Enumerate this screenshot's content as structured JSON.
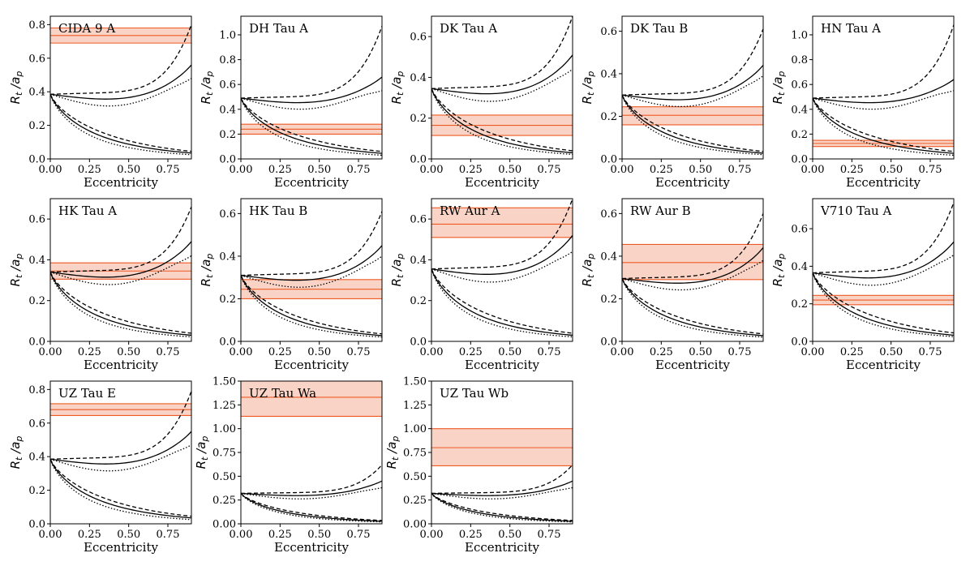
{
  "xlabel": "Eccentricity",
  "ylabel": "R_t / a_p",
  "colors": {
    "band_fill": "#f7c6b3",
    "band_line": "#ee5a24",
    "curve": "#000000"
  },
  "legend_styles": [
    "solid",
    "dashed",
    "dotted"
  ],
  "chart_data": [
    {
      "type": "line",
      "title": "CIDA 9 A",
      "xlim": [
        0,
        0.9
      ],
      "ylim": [
        0,
        0.85
      ],
      "xticks": [
        "0.00",
        "0.25",
        "0.50",
        "0.75"
      ],
      "yticks": [
        "0.0",
        "0.2",
        "0.4",
        "0.6",
        "0.8"
      ],
      "ytick_values": [
        0,
        0.2,
        0.4,
        0.6,
        0.8
      ],
      "y0": 0.385,
      "ends": {
        "up_dashed": 0.8,
        "up_solid": 0.56,
        "up_dotted": 0.48,
        "dn_dashed": 0.045,
        "dn_solid": 0.035,
        "dn_dotted": 0.025
      },
      "band": {
        "low": 0.69,
        "mid": 0.735,
        "high": 0.78
      }
    },
    {
      "type": "line",
      "title": "DH Tau A",
      "xlim": [
        0,
        0.9
      ],
      "ylim": [
        0,
        1.15
      ],
      "xticks": [
        "0.00",
        "0.25",
        "0.50",
        "0.75"
      ],
      "yticks": [
        "0.0",
        "0.2",
        "0.4",
        "0.6",
        "0.8",
        "1.0"
      ],
      "ytick_values": [
        0,
        0.2,
        0.4,
        0.6,
        0.8,
        1.0
      ],
      "y0": 0.49,
      "ends": {
        "up_dashed": 1.07,
        "up_solid": 0.66,
        "up_dotted": 0.55,
        "dn_dashed": 0.06,
        "dn_solid": 0.045,
        "dn_dotted": 0.03
      },
      "band": {
        "low": 0.2,
        "mid": 0.24,
        "high": 0.28
      }
    },
    {
      "type": "line",
      "title": "DK Tau A",
      "xlim": [
        0,
        0.9
      ],
      "ylim": [
        0,
        0.7
      ],
      "xticks": [
        "0.00",
        "0.25",
        "0.50",
        "0.75"
      ],
      "yticks": [
        "0.0",
        "0.2",
        "0.4",
        "0.6"
      ],
      "ytick_values": [
        0,
        0.2,
        0.4,
        0.6
      ],
      "y0": 0.345,
      "ends": {
        "up_dashed": 0.7,
        "up_solid": 0.51,
        "up_dotted": 0.44,
        "dn_dashed": 0.04,
        "dn_solid": 0.03,
        "dn_dotted": 0.022
      },
      "band": {
        "low": 0.115,
        "mid": 0.165,
        "high": 0.215
      }
    },
    {
      "type": "line",
      "title": "DK Tau B",
      "xlim": [
        0,
        0.9
      ],
      "ylim": [
        0,
        0.67
      ],
      "xticks": [
        "0.00",
        "0.25",
        "0.50",
        "0.75"
      ],
      "yticks": [
        "0.0",
        "0.2",
        "0.4",
        "0.6"
      ],
      "ytick_values": [
        0,
        0.2,
        0.4,
        0.6
      ],
      "y0": 0.3,
      "ends": {
        "up_dashed": 0.61,
        "up_solid": 0.44,
        "up_dotted": 0.39,
        "dn_dashed": 0.035,
        "dn_solid": 0.027,
        "dn_dotted": 0.02
      },
      "band": {
        "low": 0.16,
        "mid": 0.205,
        "high": 0.245
      }
    },
    {
      "type": "line",
      "title": "HN Tau A",
      "xlim": [
        0,
        0.9
      ],
      "ylim": [
        0,
        1.15
      ],
      "xticks": [
        "0.00",
        "0.25",
        "0.50",
        "0.75"
      ],
      "yticks": [
        "0.0",
        "0.2",
        "0.4",
        "0.6",
        "0.8",
        "1.0"
      ],
      "ytick_values": [
        0,
        0.2,
        0.4,
        0.6,
        0.8,
        1.0
      ],
      "y0": 0.49,
      "ends": {
        "up_dashed": 1.08,
        "up_solid": 0.64,
        "up_dotted": 0.55,
        "dn_dashed": 0.06,
        "dn_solid": 0.045,
        "dn_dotted": 0.03
      },
      "band": {
        "low": 0.1,
        "mid": 0.125,
        "high": 0.15
      }
    },
    {
      "type": "line",
      "title": "HK Tau A",
      "xlim": [
        0,
        0.9
      ],
      "ylim": [
        0,
        0.7
      ],
      "xticks": [
        "0.00",
        "0.25",
        "0.50",
        "0.75"
      ],
      "yticks": [
        "0.0",
        "0.2",
        "0.4",
        "0.6"
      ],
      "ytick_values": [
        0,
        0.2,
        0.4,
        0.6
      ],
      "y0": 0.34,
      "ends": {
        "up_dashed": 0.66,
        "up_solid": 0.49,
        "up_dotted": 0.42,
        "dn_dashed": 0.04,
        "dn_solid": 0.03,
        "dn_dotted": 0.022
      },
      "band": {
        "low": 0.305,
        "mid": 0.345,
        "high": 0.385
      }
    },
    {
      "type": "line",
      "title": "HK Tau B",
      "xlim": [
        0,
        0.9
      ],
      "ylim": [
        0,
        0.67
      ],
      "xticks": [
        "0.00",
        "0.25",
        "0.50",
        "0.75"
      ],
      "yticks": [
        "0.0",
        "0.2",
        "0.4",
        "0.6"
      ],
      "ytick_values": [
        0,
        0.2,
        0.4,
        0.6
      ],
      "y0": 0.31,
      "ends": {
        "up_dashed": 0.61,
        "up_solid": 0.45,
        "up_dotted": 0.4,
        "dn_dashed": 0.035,
        "dn_solid": 0.027,
        "dn_dotted": 0.02
      },
      "band": {
        "low": 0.2,
        "mid": 0.245,
        "high": 0.29
      }
    },
    {
      "type": "line",
      "title": "RW Aur A",
      "xlim": [
        0,
        0.9
      ],
      "ylim": [
        0,
        0.7
      ],
      "xticks": [
        "0.00",
        "0.25",
        "0.50",
        "0.75"
      ],
      "yticks": [
        "0.0",
        "0.2",
        "0.4",
        "0.6"
      ],
      "ytick_values": [
        0,
        0.2,
        0.4,
        0.6
      ],
      "y0": 0.355,
      "ends": {
        "up_dashed": 0.7,
        "up_solid": 0.52,
        "up_dotted": 0.44,
        "dn_dashed": 0.04,
        "dn_solid": 0.03,
        "dn_dotted": 0.022
      },
      "band": {
        "low": 0.51,
        "mid": 0.575,
        "high": 0.655
      }
    },
    {
      "type": "line",
      "title": "RW Aur B",
      "xlim": [
        0,
        0.9
      ],
      "ylim": [
        0,
        0.67
      ],
      "xticks": [
        "0.00",
        "0.25",
        "0.50",
        "0.75"
      ],
      "yticks": [
        "0.0",
        "0.2",
        "0.4",
        "0.6"
      ],
      "ytick_values": [
        0,
        0.2,
        0.4,
        0.6
      ],
      "y0": 0.295,
      "ends": {
        "up_dashed": 0.6,
        "up_solid": 0.44,
        "up_dotted": 0.38,
        "dn_dashed": 0.035,
        "dn_solid": 0.027,
        "dn_dotted": 0.02
      },
      "band": {
        "low": 0.29,
        "mid": 0.37,
        "high": 0.455
      }
    },
    {
      "type": "line",
      "title": "V710 Tau A",
      "xlim": [
        0,
        0.9
      ],
      "ylim": [
        0,
        0.76
      ],
      "xticks": [
        "0.00",
        "0.25",
        "0.50",
        "0.75"
      ],
      "yticks": [
        "0.0",
        "0.2",
        "0.4",
        "0.6"
      ],
      "ytick_values": [
        0,
        0.2,
        0.4,
        0.6
      ],
      "y0": 0.365,
      "ends": {
        "up_dashed": 0.74,
        "up_solid": 0.53,
        "up_dotted": 0.46,
        "dn_dashed": 0.045,
        "dn_solid": 0.033,
        "dn_dotted": 0.025
      },
      "band": {
        "low": 0.195,
        "mid": 0.22,
        "high": 0.245
      }
    },
    {
      "type": "line",
      "title": "UZ Tau E",
      "xlim": [
        0,
        0.9
      ],
      "ylim": [
        0,
        0.85
      ],
      "xticks": [
        "0.00",
        "0.25",
        "0.50",
        "0.75"
      ],
      "yticks": [
        "0.0",
        "0.2",
        "0.4",
        "0.6",
        "0.8"
      ],
      "ytick_values": [
        0,
        0.2,
        0.4,
        0.6,
        0.8
      ],
      "y0": 0.385,
      "ends": {
        "up_dashed": 0.79,
        "up_solid": 0.55,
        "up_dotted": 0.47,
        "dn_dashed": 0.045,
        "dn_solid": 0.035,
        "dn_dotted": 0.025
      },
      "band": {
        "low": 0.645,
        "mid": 0.68,
        "high": 0.715
      }
    },
    {
      "type": "line",
      "title": "UZ Tau Wa",
      "xlim": [
        0,
        0.9
      ],
      "ylim": [
        0,
        1.5
      ],
      "xticks": [
        "0.00",
        "0.25",
        "0.50",
        "0.75"
      ],
      "yticks": [
        "0.00",
        "0.25",
        "0.50",
        "0.75",
        "1.00",
        "1.25",
        "1.50"
      ],
      "ytick_values": [
        0,
        0.25,
        0.5,
        0.75,
        1.0,
        1.25,
        1.5
      ],
      "y0": 0.32,
      "ends": {
        "up_dashed": 0.62,
        "up_solid": 0.45,
        "up_dotted": 0.38,
        "dn_dashed": 0.035,
        "dn_solid": 0.027,
        "dn_dotted": 0.02
      },
      "band": {
        "low": 1.13,
        "mid": 1.33,
        "high": 1.5
      }
    },
    {
      "type": "line",
      "title": "UZ Tau Wb",
      "xlim": [
        0,
        0.9
      ],
      "ylim": [
        0,
        1.5
      ],
      "xticks": [
        "0.00",
        "0.25",
        "0.50",
        "0.75"
      ],
      "yticks": [
        "0.00",
        "0.25",
        "0.50",
        "0.75",
        "1.00",
        "1.25",
        "1.50"
      ],
      "ytick_values": [
        0,
        0.25,
        0.5,
        0.75,
        1.0,
        1.25,
        1.5
      ],
      "y0": 0.32,
      "ends": {
        "up_dashed": 0.62,
        "up_solid": 0.45,
        "up_dotted": 0.38,
        "dn_dashed": 0.035,
        "dn_solid": 0.027,
        "dn_dotted": 0.02
      },
      "band": {
        "low": 0.61,
        "mid": 0.8,
        "high": 1.0
      }
    }
  ]
}
